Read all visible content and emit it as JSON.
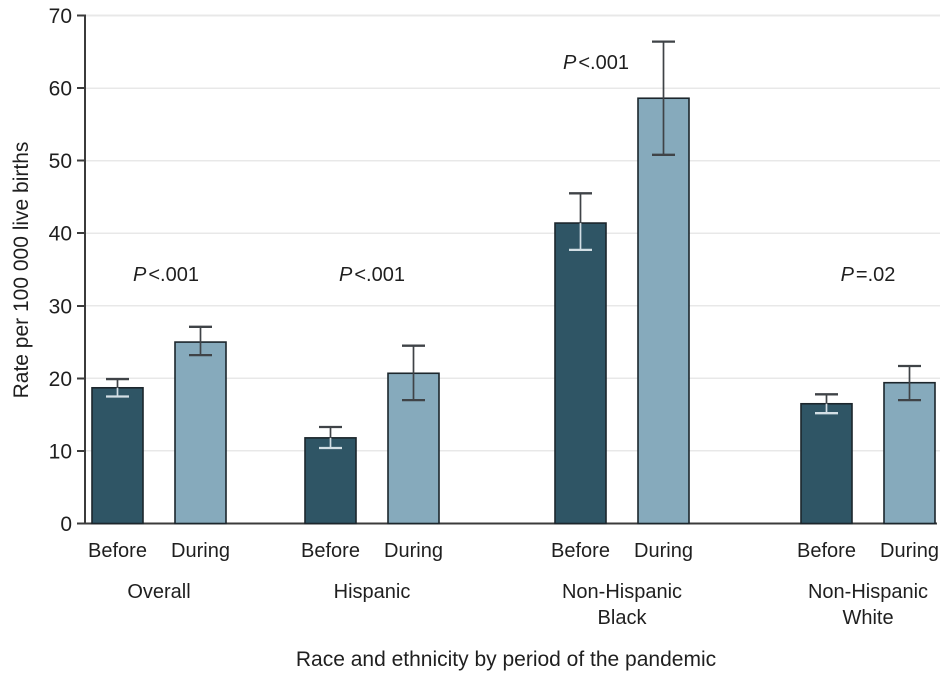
{
  "figure": {
    "y_axis_title": "Rate per 100 000 live births",
    "x_axis_title": "Race and ethnicity by period of the pandemic"
  },
  "colors": {
    "before_bar": "#2F5565",
    "during_bar": "#86AABC",
    "bar_outline": "#1C262C",
    "gridline": "#E8E8E8",
    "axis": "#3B3B3B",
    "text": "#1F1F1F",
    "error_bar_dark": "#3F4347",
    "error_bar_light": "#D3DFE5"
  },
  "chart_data": {
    "type": "bar",
    "title": "",
    "xlabel": "Race and ethnicity by period of the pandemic",
    "ylabel": "Rate per 100 000 live births",
    "ylim": [
      0,
      70
    ],
    "yticks": [
      0,
      10,
      20,
      30,
      40,
      50,
      60,
      70
    ],
    "grid": true,
    "legend_position": "none",
    "series_labels": [
      "Before",
      "During"
    ],
    "groups": [
      {
        "label_lines": [
          "Overall"
        ],
        "p_label": "P<.001",
        "bars": [
          {
            "period": "Before",
            "value": 18.7,
            "ci_low": 17.5,
            "ci_high": 19.9
          },
          {
            "period": "During",
            "value": 25.0,
            "ci_low": 23.2,
            "ci_high": 27.1
          }
        ]
      },
      {
        "label_lines": [
          "Hispanic"
        ],
        "p_label": "P<.001",
        "bars": [
          {
            "period": "Before",
            "value": 11.8,
            "ci_low": 10.4,
            "ci_high": 13.3
          },
          {
            "period": "During",
            "value": 20.7,
            "ci_low": 17.0,
            "ci_high": 24.5
          }
        ]
      },
      {
        "label_lines": [
          "Non-Hispanic",
          "Black"
        ],
        "p_label": "P<.001",
        "bars": [
          {
            "period": "Before",
            "value": 41.4,
            "ci_low": 37.7,
            "ci_high": 45.5
          },
          {
            "period": "During",
            "value": 58.6,
            "ci_low": 50.8,
            "ci_high": 66.4
          }
        ]
      },
      {
        "label_lines": [
          "Non-Hispanic",
          "White"
        ],
        "p_label": "P=.02",
        "bars": [
          {
            "period": "Before",
            "value": 16.5,
            "ci_low": 15.2,
            "ci_high": 17.8
          },
          {
            "period": "During",
            "value": 19.4,
            "ci_low": 17.0,
            "ci_high": 21.7
          }
        ]
      }
    ]
  }
}
